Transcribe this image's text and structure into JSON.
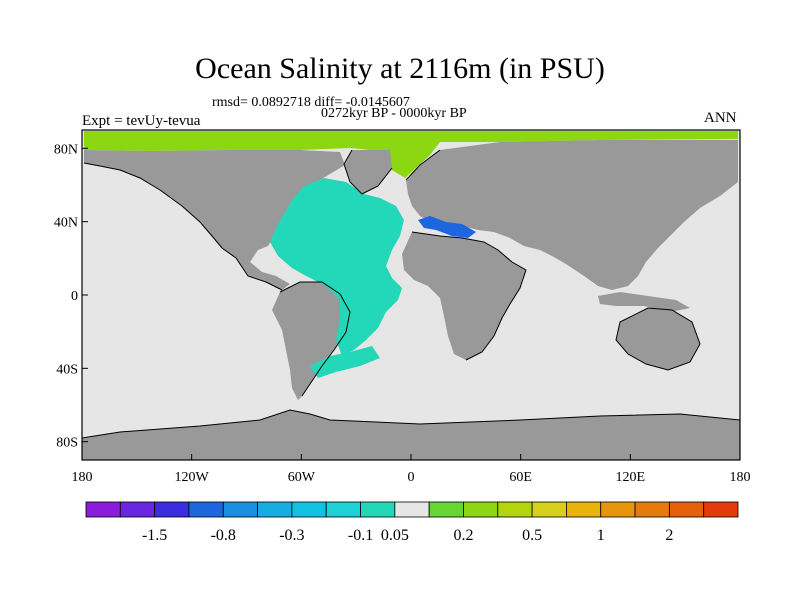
{
  "title": "Ocean Salinity at 2116m (in PSU)",
  "stats_line": "rmsd= 0.0892718 diff= -0.0145607",
  "period_line": "0272kyr BP - 0000kyr BP",
  "experiment_label": "Expt = tevUy-tevua",
  "season_label": "ANN",
  "map": {
    "projection": "cylindrical equidistant",
    "lon_range": [
      -180,
      180
    ],
    "lat_range": [
      -90,
      90
    ],
    "lon_ticks": [
      "180",
      "120W",
      "60W",
      "0",
      "60E",
      "120E",
      "180"
    ],
    "lat_ticks": [
      "80N",
      "40N",
      "0",
      "40S",
      "80S"
    ],
    "colors": {
      "land": "#999999",
      "ocean_near_zero": "#e6e6e6",
      "atlantic_fresher": "#22d8b8",
      "arctic_saltier": "#8cd612",
      "mediterranean_fresher": "#1c66e0"
    }
  },
  "colorbar": {
    "colors": [
      "#8a1ce0",
      "#6a26e0",
      "#3a2ce0",
      "#1c66e0",
      "#1a8ee0",
      "#16aee2",
      "#10c2e2",
      "#1cd2d6",
      "#22d8b8",
      "#e6e6e6",
      "#66d630",
      "#8cd612",
      "#b4d40c",
      "#d6d01a",
      "#e6b40a",
      "#e6960a",
      "#e67a0a",
      "#e6600a",
      "#e63a0a"
    ],
    "labels": [
      "-1.5",
      "-0.8",
      "-0.3",
      "-0.1",
      "0.05",
      "0.2",
      "0.5",
      "1",
      "2"
    ]
  }
}
